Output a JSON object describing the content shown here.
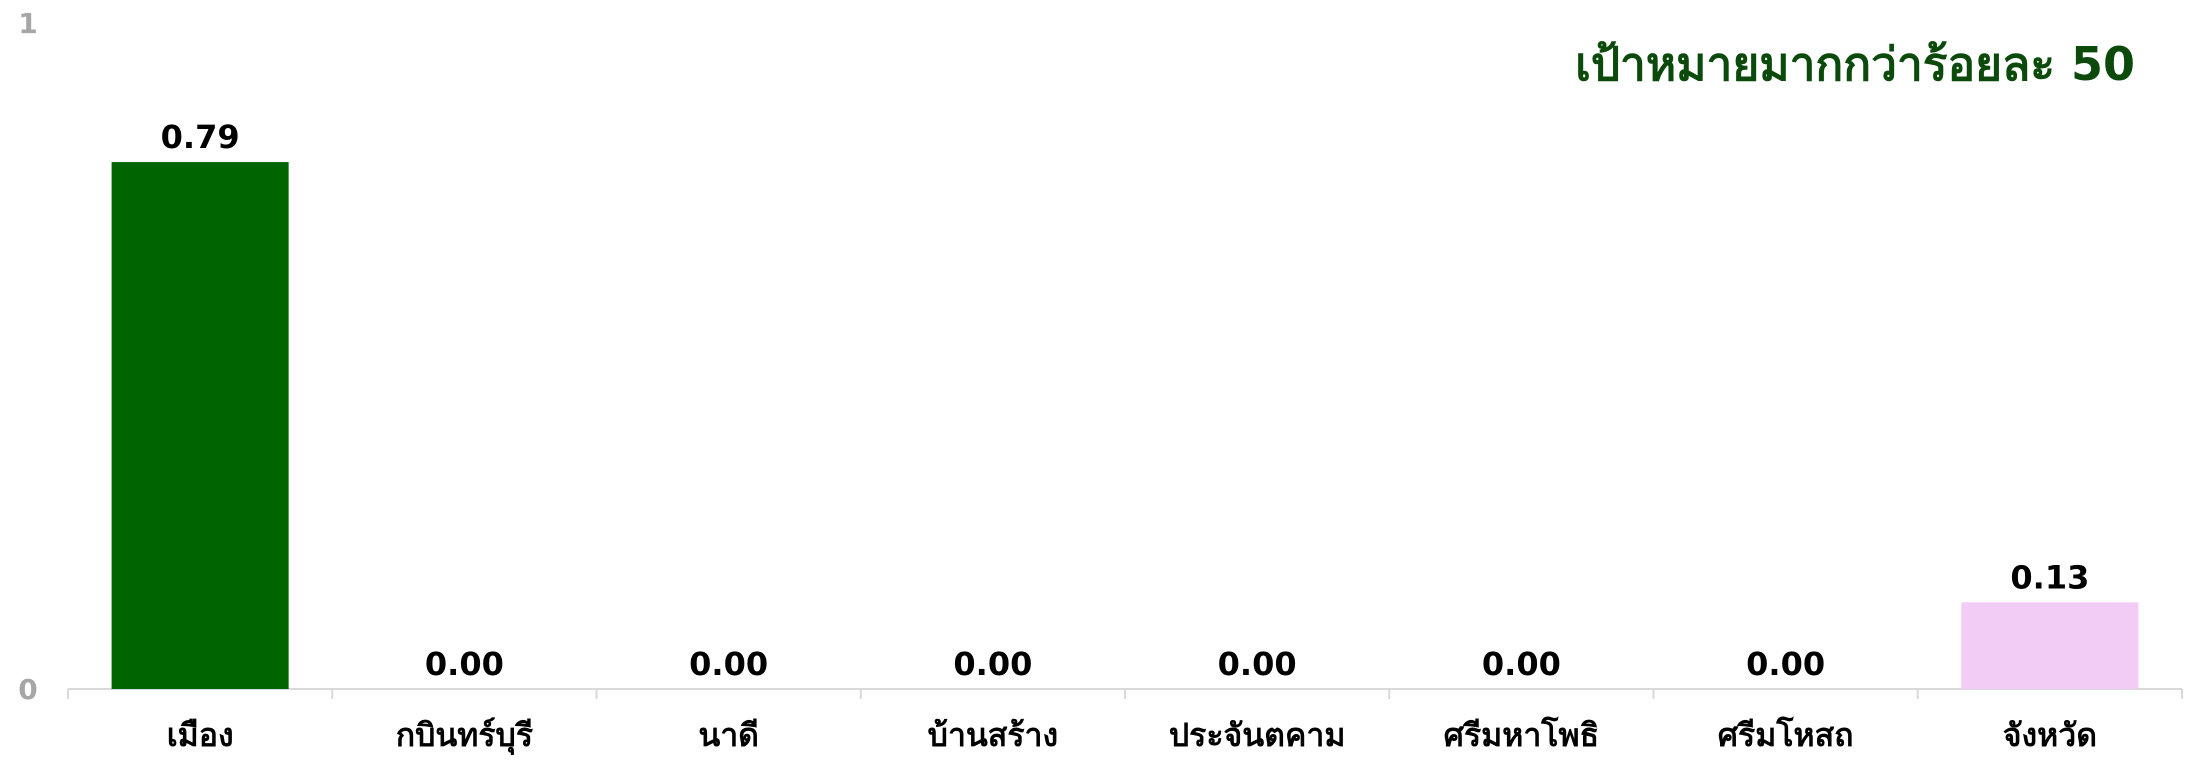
{
  "chart_data": {
    "type": "bar",
    "title": "เป้าหมายมากกว่าร้อยละ 50",
    "xlabel": "",
    "ylabel": "",
    "ylim": [
      0,
      1
    ],
    "yticks": [
      "0",
      "1"
    ],
    "grid": false,
    "legend": "none",
    "categories": [
      "เมือง",
      "กบินทร์บุรี",
      "นาดี",
      "บ้านสร้าง",
      "ประจันตคาม",
      "ศรีมหาโพธิ",
      "ศรีมโหสถ",
      "จังหวัด"
    ],
    "values": [
      0.79,
      0.0,
      0.0,
      0.0,
      0.0,
      0.0,
      0.0,
      0.13
    ],
    "data_labels": [
      "0.79",
      "0.00",
      "0.00",
      "0.00",
      "0.00",
      "0.00",
      "0.00",
      "0.13"
    ],
    "bar_colors": [
      "#006400",
      "#006400",
      "#006400",
      "#006400",
      "#006400",
      "#006400",
      "#006400",
      "#f2ccf5"
    ],
    "colors": {
      "title": "#0b4a0b",
      "axis": "#d9d9d9",
      "tick": "#a6a6a6"
    }
  }
}
